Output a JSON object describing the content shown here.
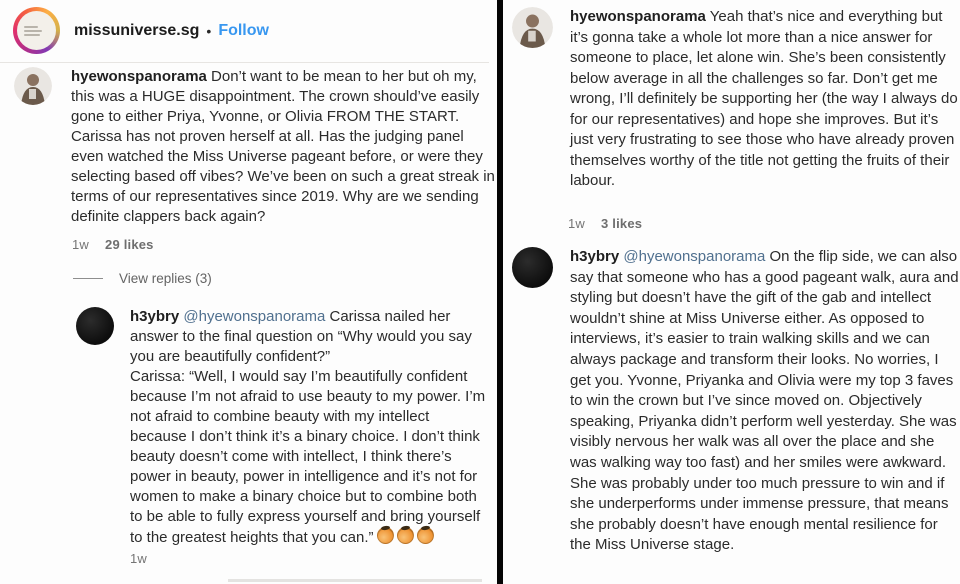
{
  "colors": {
    "follow_blue": "#3897f0",
    "mention_blue": "#50708f",
    "text_dark": "#262626",
    "meta_gray": "#757575",
    "divider_black": "#050505"
  },
  "left_panel": {
    "header": {
      "username": "missuniverse.sg",
      "separator": "•",
      "follow_label": "Follow",
      "avatar_icon": "story-ring-logo"
    },
    "comment": {
      "username": "hyewonspanorama",
      "text": " Don’t want to be mean to her but oh my, this was a HUGE disappointment. The crown should’ve easily gone to either Priya, Yvonne, or Olivia FROM THE START. Carissa has not proven herself at all. Has the judging panel even watched the Miss Universe pageant before, or were they selecting based off vibes? We’ve been on such a great streak in terms of our representatives since 2019. Why are we sending definite clappers back again?",
      "time": "1w",
      "likes": "29 likes",
      "view_replies": "View replies (3)"
    },
    "reply": {
      "username": "h3ybry",
      "mention": " @hyewonspanorama",
      "text": " Carissa nailed her answer to the final question on “Why would you say you are beautifully confident?”\nCarissa: “Well, I would say I’m beautifully confident because I’m not afraid to use beauty to my power. I’m not afraid to combine beauty with my intellect because I don’t think it’s a binary choice. I don’t think beauty doesn’t come with intellect, I think there’s power in beauty, power in intelligence and it’s not for women to make a binary choice but to combine both to be able to fully express yourself and bring yourself to the greatest heights that you can.”",
      "emoji_name": "pinched-fingers",
      "emoji_count": 3,
      "time": "1w"
    }
  },
  "right_panel": {
    "comment1": {
      "username": "hyewonspanorama",
      "text": " Yeah that’s nice and everything but it’s gonna take a whole lot more than a nice answer for someone to place, let alone win. She’s been consistently below average in all the challenges so far. Don’t get me wrong, I’ll definitely be supporting her (the way I always do for our representatives) and hope she improves. But it’s just very frustrating to see those who have already proven themselves worthy of the title not getting the fruits of their labour.",
      "time": "1w",
      "likes": "3 likes"
    },
    "comment2": {
      "username": "h3ybry",
      "mention": " @hyewonspanorama",
      "text": " On the flip side, we can also say that someone who has a good pageant walk, aura and styling but doesn’t have the gift of the gab and intellect wouldn’t shine at Miss Universe either. As opposed to interviews, it’s easier to train walking skills and we can always package and transform their looks. No worries, I get you. Yvonne, Priyanka and Olivia were my top 3 faves to win the crown but I’ve since moved on. Objectively speaking, Priyanka didn’t perform well yesterday. She was visibly nervous her walk was all over the place and she was walking way too fast) and her smiles were awkward.\nShe was probably under too much pressure to win and if she underperforms under immense pressure, that means she probably doesn’t have enough mental resilience for the Miss Universe stage."
    }
  }
}
